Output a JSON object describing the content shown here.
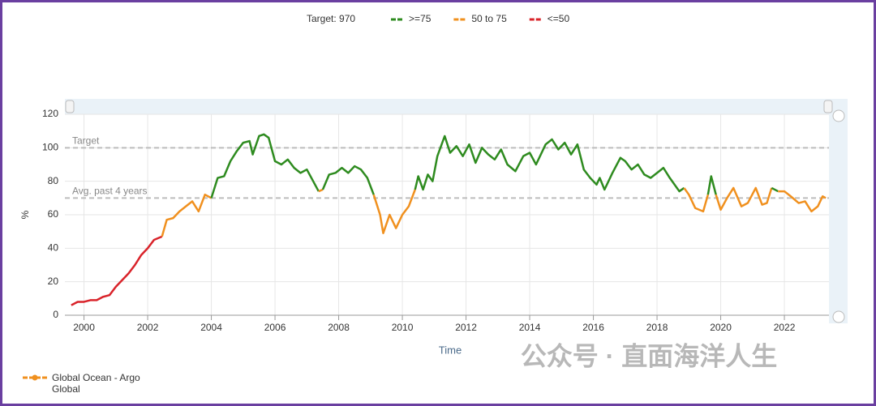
{
  "chart_data": {
    "type": "line",
    "legend_title": "Target: 970",
    "bands": [
      {
        "label": ">=75",
        "color": "#2e8b1f",
        "min": 75
      },
      {
        "label": "50 to 75",
        "color": "#f0901e",
        "min": 50
      },
      {
        "label": "<=50",
        "color": "#d9232a",
        "min": null
      }
    ],
    "reference_lines": [
      {
        "label": "Target",
        "value": 100
      },
      {
        "label": "Avg. past 4 years",
        "value": 70
      }
    ],
    "y_label": "%",
    "x_label": "Time",
    "xlim": [
      1999.4,
      2023.4
    ],
    "xticks": [
      2000,
      2002,
      2004,
      2006,
      2008,
      2010,
      2012,
      2014,
      2016,
      2018,
      2020,
      2022
    ],
    "ylim": [
      0,
      120
    ],
    "yticks": [
      0,
      20,
      40,
      60,
      80,
      100,
      120
    ],
    "grid": true,
    "x": [
      1999.6,
      1999.8,
      2000.0,
      2000.2,
      2000.4,
      2000.6,
      2000.8,
      2001.0,
      2001.2,
      2001.4,
      2001.6,
      2001.8,
      2002.0,
      2002.2,
      2002.45,
      2002.6,
      2002.8,
      2003.0,
      2003.2,
      2003.4,
      2003.6,
      2003.8,
      2004.0,
      2004.2,
      2004.4,
      2004.6,
      2004.8,
      2005.0,
      2005.2,
      2005.3,
      2005.5,
      2005.65,
      2005.8,
      2006.0,
      2006.2,
      2006.4,
      2006.6,
      2006.8,
      2007.0,
      2007.2,
      2007.37,
      2007.5,
      2007.7,
      2007.9,
      2008.1,
      2008.3,
      2008.5,
      2008.7,
      2008.9,
      2009.1,
      2009.3,
      2009.4,
      2009.6,
      2009.8,
      2010.0,
      2010.2,
      2010.4,
      2010.5,
      2010.65,
      2010.8,
      2010.95,
      2011.1,
      2011.33,
      2011.5,
      2011.7,
      2011.9,
      2012.1,
      2012.3,
      2012.5,
      2012.7,
      2012.9,
      2013.1,
      2013.3,
      2013.55,
      2013.8,
      2014.0,
      2014.2,
      2014.5,
      2014.7,
      2014.9,
      2015.1,
      2015.3,
      2015.5,
      2015.7,
      2015.9,
      2016.1,
      2016.2,
      2016.35,
      2016.6,
      2016.85,
      2017.0,
      2017.2,
      2017.4,
      2017.6,
      2017.8,
      2018.0,
      2018.2,
      2018.4,
      2018.7,
      2018.85,
      2019.0,
      2019.2,
      2019.45,
      2019.6,
      2019.7,
      2019.85,
      2020.0,
      2020.2,
      2020.4,
      2020.65,
      2020.85,
      2021.1,
      2021.3,
      2021.45,
      2021.6,
      2021.8,
      2022.0,
      2022.2,
      2022.45,
      2022.65,
      2022.85,
      2023.05,
      2023.2,
      2023.3
    ],
    "series": [
      {
        "name": "Global Ocean - Argo Global",
        "color": "#f0901e",
        "values": [
          6,
          8,
          8,
          9,
          9,
          11,
          12,
          17,
          21,
          25,
          30,
          36,
          40,
          45,
          47,
          57,
          58,
          62,
          65,
          68,
          62,
          72,
          70,
          82,
          83,
          92,
          98,
          103,
          104,
          96,
          107,
          108,
          106,
          92,
          90,
          93,
          88,
          85,
          87,
          80,
          74,
          75,
          84,
          85,
          88,
          85,
          89,
          87,
          82,
          72,
          60,
          49,
          60,
          52,
          60,
          65,
          75,
          83,
          75,
          84,
          80,
          95,
          107,
          97,
          101,
          95,
          102,
          91,
          100,
          96,
          93,
          99,
          90,
          86,
          95,
          97,
          90,
          102,
          105,
          99,
          103,
          96,
          102,
          87,
          82,
          78,
          82,
          75,
          85,
          94,
          92,
          87,
          90,
          84,
          82,
          85,
          88,
          82,
          74,
          76,
          72,
          64,
          62,
          72,
          83,
          72,
          63,
          70,
          76,
          65,
          67,
          76,
          66,
          67,
          76,
          74,
          74,
          71,
          67,
          68,
          62,
          65,
          71,
          70
        ]
      }
    ],
    "watermark": "公众号 · 直面海洋人生"
  }
}
